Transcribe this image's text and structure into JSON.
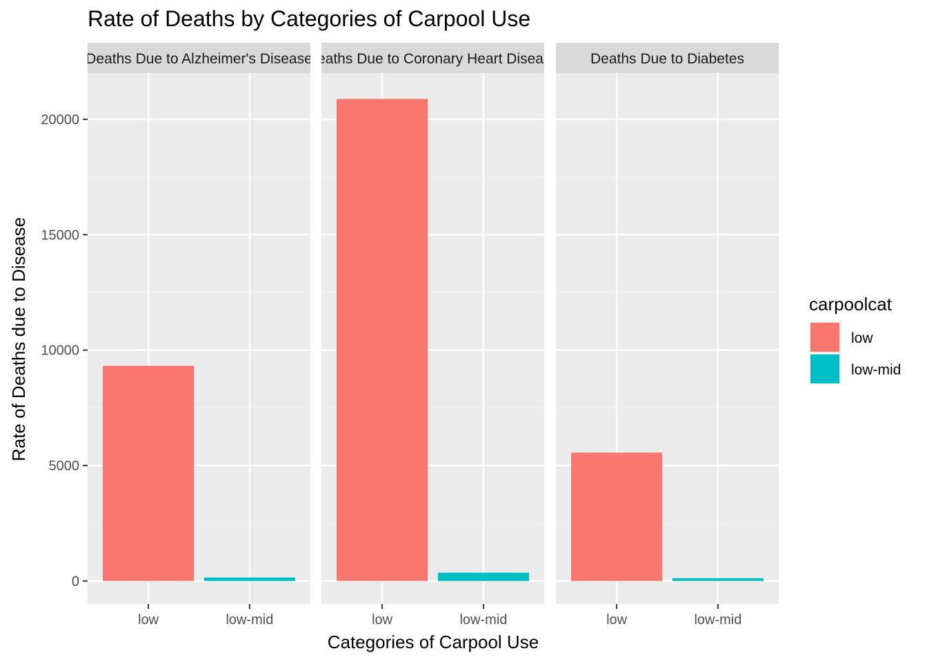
{
  "chart_data": {
    "type": "bar",
    "title": "Rate of Deaths by Categories of Carpool Use",
    "xlabel": "Categories of Carpool Use",
    "ylabel": "Rate of Deaths due to Disease",
    "ylim": [
      -1000,
      22000
    ],
    "y_ticks": [
      0,
      5000,
      10000,
      15000,
      20000
    ],
    "categories": [
      "low",
      "low-mid"
    ],
    "facets": [
      {
        "label": "Deaths Due to Alzheimer's Disease",
        "values": [
          9320,
          150
        ]
      },
      {
        "label": "Deaths Due to Coronary Heart Disease",
        "values": [
          20880,
          360
        ]
      },
      {
        "label": "Deaths Due to Diabetes",
        "values": [
          5560,
          120
        ]
      }
    ],
    "legend": {
      "title": "carpoolcat",
      "position": "right",
      "entries": [
        {
          "label": "low",
          "color": "#F8766D"
        },
        {
          "label": "low-mid",
          "color": "#00BFC4"
        }
      ]
    },
    "grid": true
  },
  "colors": {
    "panel_bg": "#EBEBEB",
    "strip_bg": "#D9D9D9",
    "grid_major": "#FFFFFF",
    "grid_minor": "#F2F2F2",
    "tick_text": "#4D4D4D",
    "strip_text": "#1A1A1A"
  }
}
